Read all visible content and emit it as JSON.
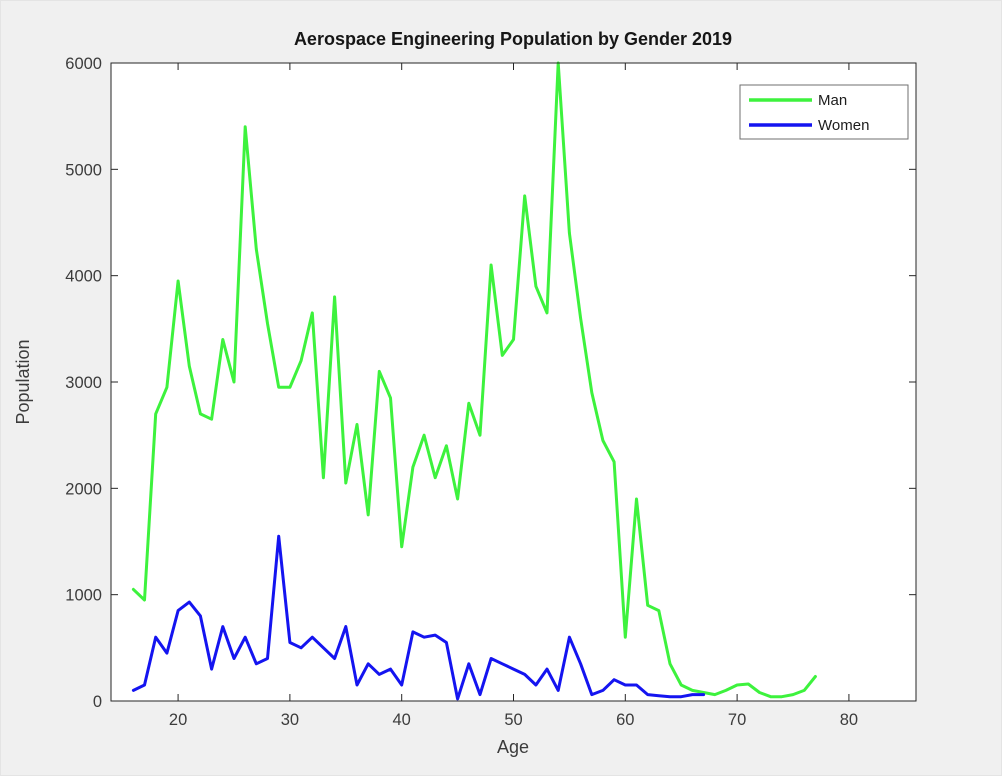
{
  "figure": {
    "background": "#f0f0f0",
    "plot_background": "#ffffff",
    "axis_color": "#262626",
    "tick_label_color": "#3c3c3c"
  },
  "chart_data": {
    "type": "line",
    "title": "Aerospace Engineering Population by Gender 2019",
    "xlabel": "Age",
    "ylabel": "Population",
    "xlim": [
      14,
      86
    ],
    "ylim": [
      0,
      6000
    ],
    "x_ticks": [
      20,
      30,
      40,
      50,
      60,
      70,
      80
    ],
    "y_ticks": [
      0,
      1000,
      2000,
      3000,
      4000,
      5000,
      6000
    ],
    "grid": false,
    "legend_position": "top-right",
    "series": [
      {
        "name": "Man",
        "color": "#3df23d",
        "x": [
          16,
          17,
          18,
          19,
          20,
          21,
          22,
          23,
          24,
          25,
          26,
          27,
          28,
          29,
          30,
          31,
          32,
          33,
          34,
          35,
          36,
          37,
          38,
          39,
          40,
          41,
          42,
          43,
          44,
          45,
          46,
          47,
          48,
          49,
          50,
          51,
          52,
          53,
          54,
          55,
          56,
          57,
          58,
          59,
          60,
          61,
          62,
          63,
          64,
          65,
          66,
          67,
          68,
          69,
          70,
          71,
          72,
          73,
          74,
          75,
          76,
          77
        ],
        "values": [
          1050,
          950,
          2700,
          2950,
          3950,
          3150,
          2700,
          2650,
          3400,
          3000,
          5400,
          4250,
          3550,
          2950,
          2950,
          3200,
          3650,
          2100,
          3800,
          2050,
          2600,
          1750,
          3100,
          2850,
          1450,
          2200,
          2500,
          2100,
          2400,
          1900,
          2800,
          2500,
          4100,
          3250,
          3400,
          4750,
          3900,
          3650,
          6000,
          4400,
          3600,
          2900,
          2450,
          2250,
          600,
          1900,
          900,
          850,
          350,
          150,
          100,
          80,
          60,
          100,
          150,
          160,
          80,
          40,
          40,
          60,
          100,
          230
        ]
      },
      {
        "name": "Women",
        "color": "#1414f0",
        "x": [
          16,
          17,
          18,
          19,
          20,
          21,
          22,
          23,
          24,
          25,
          26,
          27,
          28,
          29,
          30,
          31,
          32,
          33,
          34,
          35,
          36,
          37,
          38,
          39,
          40,
          41,
          42,
          43,
          44,
          45,
          46,
          47,
          48,
          49,
          50,
          51,
          52,
          53,
          54,
          55,
          56,
          57,
          58,
          59,
          60,
          61,
          62,
          63,
          64,
          65,
          66,
          67
        ],
        "values": [
          100,
          150,
          600,
          450,
          850,
          930,
          800,
          300,
          700,
          400,
          600,
          350,
          400,
          1550,
          550,
          500,
          600,
          500,
          400,
          700,
          150,
          350,
          250,
          300,
          150,
          650,
          600,
          620,
          550,
          20,
          350,
          60,
          400,
          350,
          300,
          250,
          150,
          300,
          100,
          600,
          350,
          60,
          100,
          200,
          150,
          150,
          60,
          50,
          40,
          40,
          60,
          60
        ]
      }
    ]
  }
}
